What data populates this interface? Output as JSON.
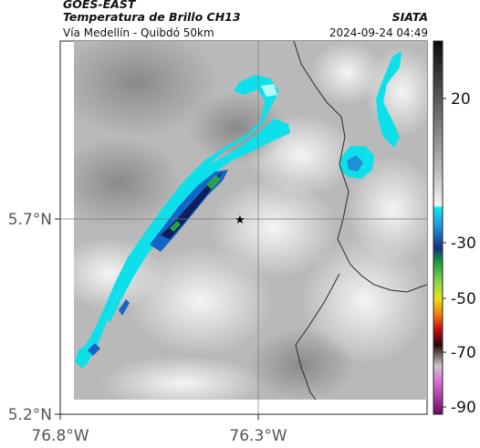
{
  "header": {
    "satellite": "GOES-EAST",
    "title": "Temperatura de Brillo CH13",
    "location": "Vía Medellín - Quibdó 50km",
    "organization": "SIATA",
    "datetime": "2024-09-24 04:49"
  },
  "axes": {
    "x_ticks": [
      "76.8°W",
      "76.3°W"
    ],
    "y_ticks": [
      "5.7°N",
      "5.2°N"
    ]
  },
  "colorbar": {
    "ticks": [
      "20",
      "-30",
      "-50",
      "-70",
      "-90"
    ]
  },
  "map_features": {
    "marker": "star-icon",
    "basemap": "grayscale brightness temperature with cyan/blue cold cloud band"
  },
  "colors": {
    "cloud_cyan": "#0de0ea",
    "cloud_blue": "#1565c8",
    "cloud_navy": "#0c1f5a",
    "cloud_green": "#26a34a",
    "border": "#2a2a2a"
  }
}
